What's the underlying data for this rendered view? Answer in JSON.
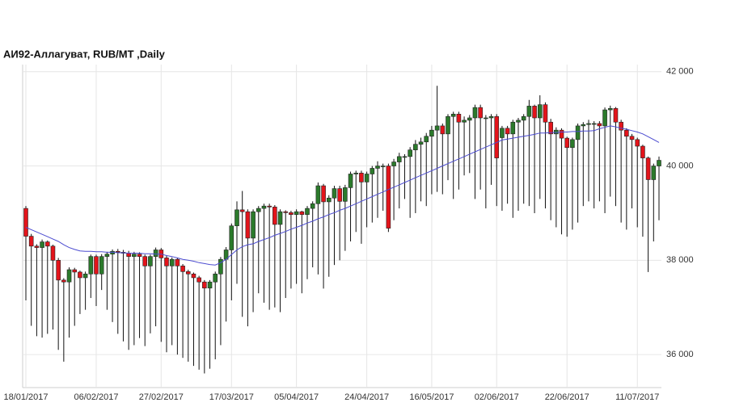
{
  "chart_data": {
    "type": "candlestick",
    "title": "АИ92-Аллагуват,  RUB/MT ,Daily",
    "categories": [
      "18/01/2017",
      null,
      null,
      null,
      null,
      null,
      null,
      null,
      null,
      null,
      null,
      null,
      null,
      "06/02/2017",
      null,
      null,
      null,
      null,
      null,
      null,
      null,
      null,
      null,
      null,
      null,
      "27/02/2017",
      null,
      null,
      null,
      null,
      null,
      null,
      null,
      null,
      null,
      null,
      null,
      null,
      "17/03/2017",
      null,
      null,
      null,
      null,
      null,
      null,
      null,
      null,
      null,
      null,
      null,
      "05/04/2017",
      null,
      null,
      null,
      null,
      null,
      null,
      null,
      null,
      null,
      null,
      null,
      null,
      "24/04/2017",
      null,
      null,
      null,
      null,
      null,
      null,
      null,
      null,
      null,
      null,
      null,
      "16/05/2017",
      null,
      null,
      null,
      null,
      null,
      null,
      null,
      null,
      null,
      null,
      null,
      "02/06/2017",
      null,
      null,
      null,
      null,
      null,
      null,
      null,
      null,
      null,
      null,
      null,
      null,
      "22/06/2017",
      null,
      null,
      null,
      null,
      null,
      null,
      null,
      null,
      null,
      null,
      null,
      null,
      "11/07/2017",
      null,
      null,
      null,
      null
    ],
    "open": [
      39100,
      38510,
      38300,
      38270,
      38390,
      38300,
      38000,
      37580,
      37540,
      37800,
      37750,
      37630,
      37710,
      38080,
      37710,
      38080,
      38130,
      38190,
      38170,
      38150,
      38080,
      38130,
      38080,
      37880,
      38080,
      38220,
      38050,
      37880,
      38020,
      37880,
      37760,
      37710,
      37630,
      37540,
      37410,
      37540,
      37710,
      38020,
      38220,
      38730,
      39070,
      39030,
      38470,
      39030,
      39100,
      39150,
      39130,
      38760,
      39030,
      39010,
      38970,
      39030,
      38970,
      39100,
      39200,
      39580,
      39240,
      39320,
      39520,
      39250,
      39540,
      39830,
      39850,
      39660,
      39830,
      39950,
      40000,
      40000,
      40000,
      40085,
      40200,
      40200,
      40340,
      40460,
      40510,
      40630,
      40760,
      40850,
      40680,
      41050,
      41100,
      40930,
      40970,
      41020,
      41240,
      41020,
      41020,
      41050,
      40600,
      40800,
      40680,
      40930,
      40970,
      41050,
      41270,
      41020,
      41300,
      40930,
      40680,
      40760,
      40590,
      40390,
      40560,
      40850,
      40880,
      40900,
      40900,
      40850,
      41190,
      41220,
      40930,
      40760,
      40630,
      40560,
      40420,
      40170,
      39710,
      40000
    ],
    "high": [
      39150,
      38560,
      38340,
      38440,
      38420,
      38330,
      38050,
      37620,
      37850,
      37840,
      37780,
      37760,
      38120,
      38120,
      38130,
      38180,
      38230,
      38240,
      38220,
      38200,
      38180,
      38170,
      38120,
      38120,
      38270,
      38260,
      38100,
      38060,
      38050,
      37920,
      37800,
      37740,
      37670,
      37580,
      37580,
      37760,
      38070,
      38280,
      38780,
      39250,
      39470,
      39080,
      39080,
      39150,
      39200,
      39200,
      39170,
      39080,
      39060,
      39050,
      39080,
      39050,
      39150,
      39250,
      39650,
      39620,
      39380,
      39580,
      39580,
      39600,
      39880,
      39900,
      39900,
      39880,
      40000,
      40100,
      40050,
      40050,
      40150,
      40280,
      40250,
      40400,
      40550,
      40600,
      40700,
      40850,
      41700,
      40900,
      41100,
      41150,
      41150,
      41050,
      41080,
      41300,
      41300,
      41080,
      41100,
      41100,
      40850,
      40850,
      40980,
      41020,
      41100,
      41400,
      41300,
      41500,
      41350,
      41000,
      40820,
      40800,
      40620,
      40600,
      40900,
      40930,
      40980,
      40950,
      40950,
      41240,
      41280,
      41250,
      40980,
      40800,
      40680,
      40600,
      40450,
      40200,
      40050,
      40200
    ],
    "low": [
      37150,
      36610,
      36390,
      36360,
      36440,
      36530,
      36100,
      35850,
      36360,
      36610,
      36860,
      36950,
      37200,
      37030,
      37370,
      36950,
      36690,
      36440,
      36280,
      36100,
      36200,
      36350,
      36180,
      36450,
      36600,
      36270,
      36050,
      36200,
      36000,
      35930,
      35850,
      35760,
      35680,
      35600,
      35700,
      35900,
      36200,
      36700,
      37150,
      37500,
      36800,
      36600,
      36900,
      37300,
      37100,
      36950,
      37000,
      36900,
      37200,
      37400,
      37500,
      37300,
      37600,
      37850,
      37700,
      37400,
      37650,
      37900,
      38000,
      38200,
      38400,
      38600,
      38350,
      38700,
      38800,
      38900,
      39050,
      38600,
      38850,
      39100,
      39300,
      38900,
      39000,
      39250,
      39150,
      39400,
      39450,
      39400,
      39700,
      39300,
      39500,
      39800,
      39850,
      39300,
      39500,
      39100,
      39600,
      39150,
      39050,
      39200,
      38900,
      39050,
      39200,
      39150,
      39000,
      39300,
      39100,
      38850,
      38700,
      38550,
      38500,
      38650,
      38800,
      39150,
      39250,
      39100,
      39250,
      39000,
      39350,
      39150,
      38800,
      38650,
      39100,
      38700,
      38500,
      37750,
      38400,
      38850
    ],
    "close": [
      38510,
      38300,
      38270,
      38390,
      38300,
      38000,
      37580,
      37540,
      37800,
      37750,
      37630,
      37710,
      38080,
      37710,
      38080,
      38130,
      38190,
      38170,
      38150,
      38080,
      38130,
      38080,
      37880,
      38080,
      38220,
      38050,
      37880,
      38020,
      37880,
      37760,
      37710,
      37630,
      37540,
      37410,
      37540,
      37710,
      38020,
      38220,
      38730,
      39070,
      39030,
      38470,
      39030,
      39100,
      39150,
      39130,
      38760,
      39030,
      39010,
      38970,
      39030,
      38970,
      39100,
      39200,
      39580,
      39240,
      39320,
      39520,
      39250,
      39540,
      39830,
      39850,
      39660,
      39830,
      39950,
      40000,
      40000,
      38680,
      40085,
      40200,
      40200,
      40340,
      40460,
      40510,
      40630,
      40760,
      40850,
      40680,
      41050,
      41100,
      40930,
      40970,
      41020,
      41240,
      41020,
      41020,
      41050,
      40170,
      40800,
      40680,
      40930,
      40970,
      41050,
      41270,
      41020,
      41300,
      40930,
      40680,
      40760,
      40590,
      40390,
      40560,
      40850,
      40880,
      40900,
      40900,
      40850,
      41190,
      41220,
      40930,
      40760,
      40630,
      40560,
      40420,
      40170,
      39710,
      40000,
      40120
    ],
    "up_color": "#2b7a2b",
    "down_color": "#e3141b",
    "wick_color": "#111111",
    "ma": {
      "color": "#4b4bd0",
      "values": [
        38700,
        38650,
        38600,
        38550,
        38500,
        38450,
        38400,
        38330,
        38270,
        38230,
        38200,
        38190,
        38190,
        38180,
        38180,
        38170,
        38170,
        38160,
        38160,
        38150,
        38150,
        38150,
        38140,
        38140,
        38130,
        38130,
        38100,
        38080,
        38050,
        38020,
        38000,
        37980,
        37950,
        37930,
        37910,
        37900,
        37950,
        38020,
        38120,
        38220,
        38290,
        38330,
        38350,
        38400,
        38440,
        38480,
        38530,
        38570,
        38610,
        38660,
        38700,
        38740,
        38790,
        38830,
        38880,
        38920,
        38970,
        39010,
        39060,
        39100,
        39150,
        39200,
        39250,
        39300,
        39350,
        39400,
        39450,
        39500,
        39550,
        39600,
        39650,
        39700,
        39750,
        39800,
        39850,
        39900,
        39950,
        40000,
        40050,
        40100,
        40150,
        40200,
        40250,
        40300,
        40350,
        40400,
        40450,
        40500,
        40550,
        40570,
        40590,
        40610,
        40630,
        40650,
        40670,
        40700,
        40700,
        40710,
        40710,
        40720,
        40720,
        40730,
        40730,
        40740,
        40740,
        40750,
        40790,
        40820,
        40850,
        40830,
        40800,
        40780,
        40750,
        40720,
        40680,
        40620,
        40560,
        40500
      ]
    },
    "ylim": [
      35300,
      42150
    ],
    "yticks": [
      {
        "value": 36000,
        "label": "36 000"
      },
      {
        "value": 38000,
        "label": "38 000"
      },
      {
        "value": 40000,
        "label": "40 000"
      },
      {
        "value": 42000,
        "label": "42 000"
      }
    ],
    "grid": true
  }
}
